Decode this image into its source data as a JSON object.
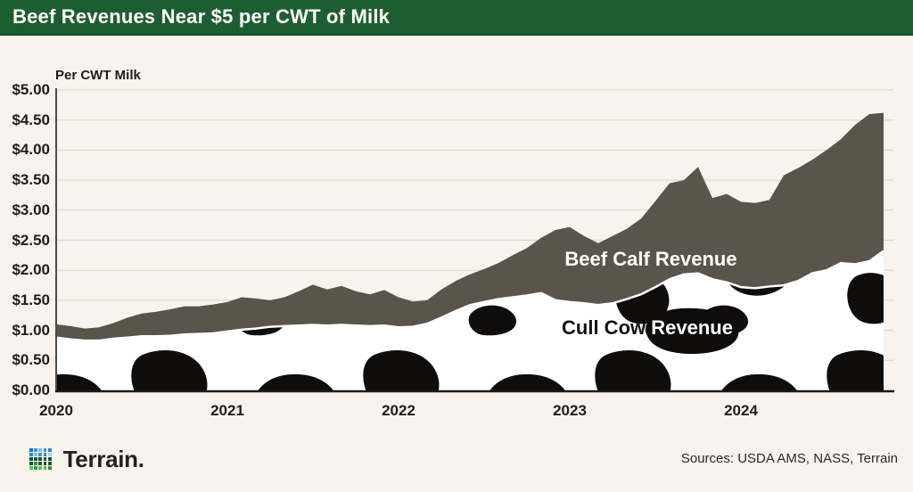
{
  "header": {
    "title": "Beef Revenues Near $5 per CWT of Milk"
  },
  "chart": {
    "axis_title": "Per CWT Milk",
    "cull_label_dark": "Cull Cow",
    "cull_label_light": "Revenue"
  },
  "chart_data": {
    "type": "area",
    "stacked": true,
    "title": "Beef Revenues Near $5 per CWT of Milk",
    "ylabel": "Per CWT Milk",
    "ylim": [
      0,
      5
    ],
    "y_tick_step": 0.5,
    "y_tick_labels": [
      "$5.00",
      "$4.50",
      "$4.00",
      "$3.50",
      "$3.00",
      "$2.50",
      "$2.00",
      "$1.50",
      "$1.00",
      "$0.50",
      "$0.00"
    ],
    "x_tick_labels": [
      "2020",
      "2021",
      "2022",
      "2023",
      "2024"
    ],
    "x_frequency": "monthly",
    "x_range": "Jan 2020 - Nov 2024",
    "grid": true,
    "legend_position": "inside-areas",
    "series": [
      {
        "name": "Cull Cow Revenue",
        "style": "cow-pattern",
        "values": [
          0.88,
          0.85,
          0.83,
          0.83,
          0.86,
          0.88,
          0.9,
          0.9,
          0.91,
          0.93,
          0.94,
          0.95,
          0.98,
          1.01,
          1.03,
          1.06,
          1.07,
          1.08,
          1.09,
          1.08,
          1.09,
          1.08,
          1.07,
          1.08,
          1.05,
          1.06,
          1.11,
          1.21,
          1.32,
          1.42,
          1.47,
          1.52,
          1.55,
          1.58,
          1.62,
          1.5,
          1.47,
          1.45,
          1.42,
          1.45,
          1.52,
          1.6,
          1.72,
          1.85,
          1.93,
          1.95,
          1.85,
          1.8,
          1.72,
          1.7,
          1.73,
          1.75,
          1.82,
          1.95,
          2.0,
          2.12,
          2.1,
          2.15,
          2.32
        ]
      },
      {
        "name": "Beef Calf Revenue",
        "color": "#5b544b",
        "values": [
          0.22,
          0.22,
          0.2,
          0.22,
          0.26,
          0.33,
          0.38,
          0.41,
          0.44,
          0.47,
          0.46,
          0.48,
          0.49,
          0.54,
          0.5,
          0.44,
          0.48,
          0.57,
          0.67,
          0.6,
          0.65,
          0.57,
          0.53,
          0.59,
          0.5,
          0.42,
          0.39,
          0.47,
          0.5,
          0.51,
          0.55,
          0.6,
          0.7,
          0.79,
          0.92,
          1.17,
          1.25,
          1.12,
          1.03,
          1.12,
          1.17,
          1.26,
          1.43,
          1.6,
          1.57,
          1.77,
          1.35,
          1.47,
          1.42,
          1.42,
          1.44,
          1.83,
          1.88,
          1.89,
          2.0,
          2.06,
          2.32,
          2.45,
          2.3
        ]
      }
    ]
  },
  "footer": {
    "brand": "Terrain.",
    "sources": "Sources: USDA AMS, NASS, Terrain",
    "logo_colors": [
      [
        "#1d72b8",
        "#3d96d2",
        "#7fc0e8",
        "#3d96d2",
        "#2e86c8"
      ],
      [
        "#2e86c8",
        "#7fc0e8",
        "#3d96d2",
        "#2e86c8",
        "#a5d4ef"
      ],
      [
        "#175430",
        "#19582f",
        "#175430",
        "#19582f",
        "#175430"
      ],
      [
        "#175430",
        "#2f8f46",
        "#19582f",
        "#175430",
        "#19582f"
      ],
      [
        "#58c252",
        "#2f8f46",
        "#58c252",
        "#49b84b",
        "#2f8f46"
      ]
    ]
  },
  "colors": {
    "page_bg": "#f8f3ec",
    "header_green": "#1d5e30",
    "beef_area_gray": "#5b544b",
    "cow_spot_black": "#0f0d0b",
    "cow_base_white": "#ffffff",
    "gridline": "#d9d4cc",
    "axis": "#4f4a44",
    "text": "#1f1d19"
  }
}
